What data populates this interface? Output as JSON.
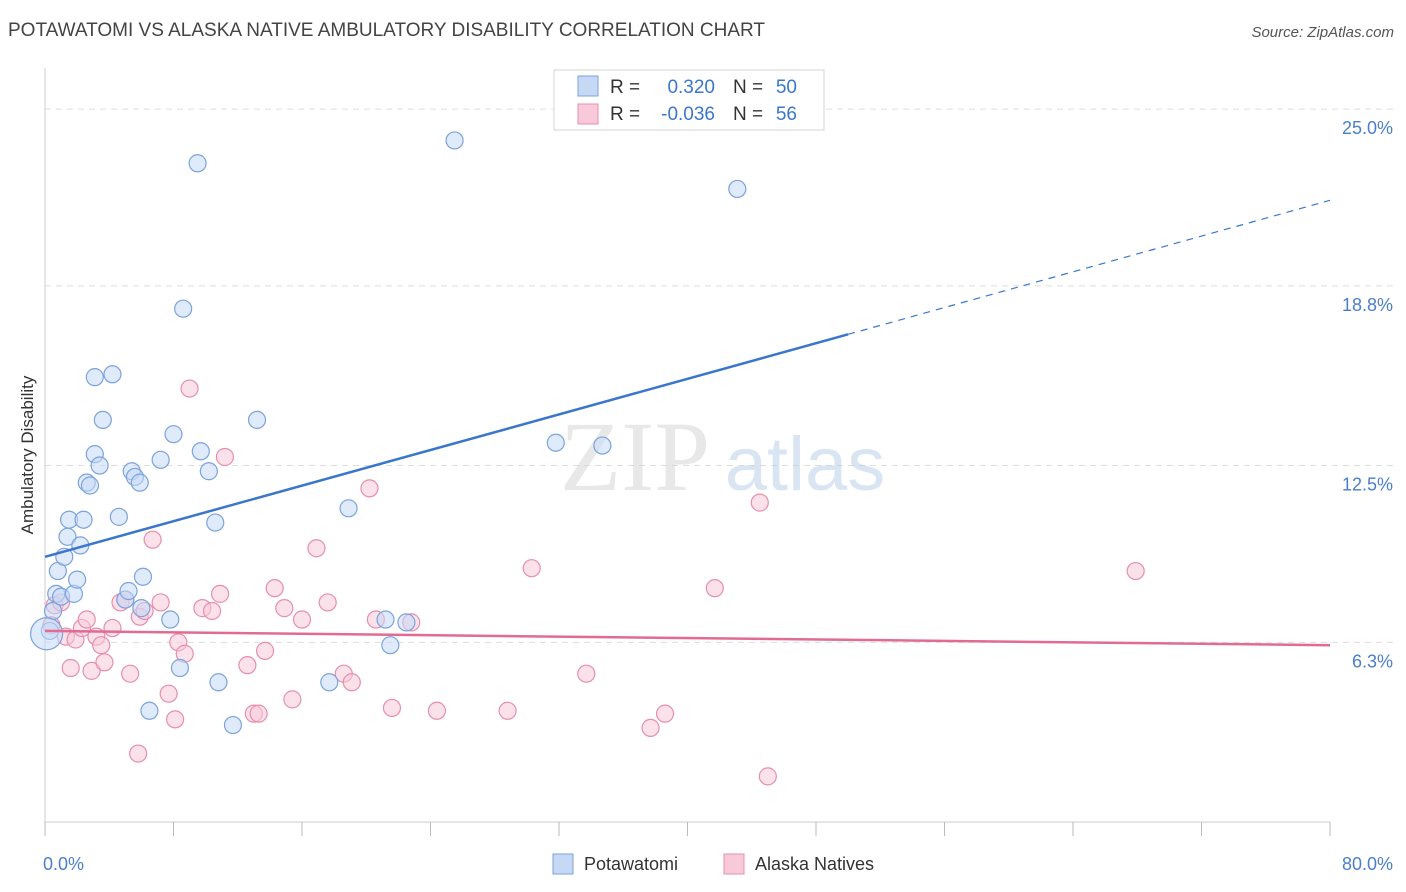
{
  "title": "POTAWATOMI VS ALASKA NATIVE AMBULATORY DISABILITY CORRELATION CHART",
  "source": "Source: ZipAtlas.com",
  "watermark": {
    "zip": "ZIP",
    "atlas": "atlas"
  },
  "colors": {
    "blue_fill": "#c5d9f5",
    "blue_stroke": "#7ba3dc",
    "blue_line": "#3a77cc",
    "pink_fill": "#f8cad9",
    "pink_stroke": "#e88eac",
    "pink_line": "#e26b94",
    "tick_label": "#4a7fcb",
    "grid": "#dddddd"
  },
  "legend_top": {
    "rows": [
      {
        "r_label": "R =",
        "r_value": "0.320",
        "n_label": "N =",
        "n_value": "50"
      },
      {
        "r_label": "R =",
        "r_value": "-0.036",
        "n_label": "N =",
        "n_value": "56"
      }
    ]
  },
  "chart_data": {
    "type": "scatter",
    "title": "POTAWATOMI VS ALASKA NATIVE AMBULATORY DISABILITY CORRELATION CHART",
    "xlabel": "",
    "ylabel": "Ambulatory Disability",
    "xlim": [
      0,
      80
    ],
    "ylim": [
      0,
      26.3
    ],
    "x_tick_labels": [
      "0.0%",
      "80.0%"
    ],
    "y_ticks": [
      6.3,
      12.5,
      18.8,
      25.0
    ],
    "y_tick_labels": [
      "6.3%",
      "12.5%",
      "18.8%",
      "25.0%"
    ],
    "grid": true,
    "legend_position": "bottom-center",
    "series": [
      {
        "name": "Potawatomi",
        "points": [
          [
            0.3,
            6.7
          ],
          [
            0.5,
            7.4
          ],
          [
            0.7,
            8.0
          ],
          [
            0.8,
            8.8
          ],
          [
            1.0,
            7.9
          ],
          [
            1.2,
            9.3
          ],
          [
            1.4,
            10.0
          ],
          [
            1.5,
            10.6
          ],
          [
            1.8,
            8.0
          ],
          [
            2.0,
            8.5
          ],
          [
            2.2,
            9.7
          ],
          [
            2.4,
            10.6
          ],
          [
            2.6,
            11.9
          ],
          [
            2.8,
            11.8
          ],
          [
            3.1,
            12.9
          ],
          [
            3.4,
            12.5
          ],
          [
            3.6,
            14.1
          ],
          [
            3.1,
            15.6
          ],
          [
            4.2,
            15.7
          ],
          [
            4.6,
            10.7
          ],
          [
            5.0,
            7.8
          ],
          [
            5.2,
            8.1
          ],
          [
            5.4,
            12.3
          ],
          [
            5.6,
            12.1
          ],
          [
            5.9,
            11.9
          ],
          [
            6.0,
            7.5
          ],
          [
            6.1,
            8.6
          ],
          [
            6.5,
            3.9
          ],
          [
            7.2,
            12.7
          ],
          [
            7.8,
            7.1
          ],
          [
            8.0,
            13.6
          ],
          [
            8.4,
            5.4
          ],
          [
            8.6,
            18.0
          ],
          [
            9.5,
            23.1
          ],
          [
            9.7,
            13.0
          ],
          [
            10.2,
            12.3
          ],
          [
            10.6,
            10.5
          ],
          [
            10.8,
            4.9
          ],
          [
            11.7,
            3.4
          ],
          [
            13.2,
            14.1
          ],
          [
            17.7,
            4.9
          ],
          [
            18.9,
            11.0
          ],
          [
            21.2,
            7.1
          ],
          [
            21.5,
            6.2
          ],
          [
            22.5,
            7.0
          ],
          [
            25.5,
            23.9
          ],
          [
            31.8,
            13.3
          ],
          [
            34.7,
            13.2
          ],
          [
            43.1,
            22.2
          ],
          [
            0.1,
            6.6
          ]
        ]
      },
      {
        "name": "Alaska Natives",
        "points": [
          [
            0.4,
            6.9
          ],
          [
            0.6,
            7.6
          ],
          [
            1.0,
            7.7
          ],
          [
            1.3,
            6.5
          ],
          [
            1.6,
            5.4
          ],
          [
            1.9,
            6.4
          ],
          [
            2.3,
            6.8
          ],
          [
            2.6,
            7.1
          ],
          [
            2.9,
            5.3
          ],
          [
            3.2,
            6.5
          ],
          [
            3.5,
            6.2
          ],
          [
            3.7,
            5.6
          ],
          [
            4.2,
            6.8
          ],
          [
            4.7,
            7.7
          ],
          [
            5.0,
            7.8
          ],
          [
            5.3,
            5.2
          ],
          [
            5.8,
            2.4
          ],
          [
            5.9,
            7.2
          ],
          [
            6.2,
            7.4
          ],
          [
            6.7,
            9.9
          ],
          [
            7.2,
            7.7
          ],
          [
            7.7,
            4.5
          ],
          [
            8.1,
            3.6
          ],
          [
            8.3,
            6.3
          ],
          [
            8.7,
            5.9
          ],
          [
            9.0,
            15.2
          ],
          [
            9.8,
            7.5
          ],
          [
            10.4,
            7.4
          ],
          [
            10.9,
            8.0
          ],
          [
            11.2,
            12.8
          ],
          [
            12.6,
            5.5
          ],
          [
            13.0,
            3.8
          ],
          [
            13.3,
            3.8
          ],
          [
            13.7,
            6.0
          ],
          [
            14.3,
            8.2
          ],
          [
            14.9,
            7.5
          ],
          [
            15.4,
            4.3
          ],
          [
            16.0,
            7.1
          ],
          [
            16.9,
            9.6
          ],
          [
            17.6,
            7.7
          ],
          [
            18.6,
            5.2
          ],
          [
            19.1,
            4.9
          ],
          [
            20.2,
            11.7
          ],
          [
            20.6,
            7.1
          ],
          [
            21.6,
            4.0
          ],
          [
            22.8,
            7.0
          ],
          [
            24.4,
            3.9
          ],
          [
            28.8,
            3.9
          ],
          [
            30.3,
            8.9
          ],
          [
            33.7,
            5.2
          ],
          [
            37.7,
            3.3
          ],
          [
            38.6,
            3.8
          ],
          [
            41.7,
            8.2
          ],
          [
            44.5,
            11.2
          ],
          [
            45.0,
            1.6
          ],
          [
            67.9,
            8.8
          ]
        ]
      }
    ],
    "trend_lines": [
      {
        "series": "Potawatomi",
        "x": [
          0,
          50,
          80
        ],
        "y": [
          9.3,
          17.1,
          21.8
        ],
        "solid_until_x": 50
      },
      {
        "series": "Alaska Natives",
        "x": [
          0,
          80
        ],
        "y": [
          6.7,
          6.2
        ]
      }
    ]
  }
}
